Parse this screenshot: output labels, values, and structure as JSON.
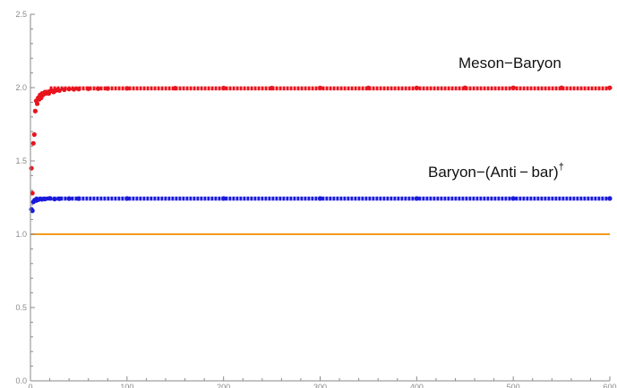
{
  "chart_data": {
    "type": "scatter",
    "title": "",
    "xlabel": "",
    "ylabel": "",
    "xlim": [
      0,
      600
    ],
    "ylim": [
      0,
      2.5
    ],
    "x_ticks": [
      0,
      100,
      200,
      300,
      400,
      500,
      600
    ],
    "x_tick_labels": [
      "0",
      "100",
      "200",
      "300",
      "400",
      "500",
      "600"
    ],
    "y_ticks": [
      0.0,
      0.5,
      1.0,
      1.5,
      2.0,
      2.5
    ],
    "y_tick_labels": [
      "0.0",
      "0.5",
      "1.0",
      "1.5",
      "2.0",
      "2.5"
    ],
    "grid": false,
    "legend": "none",
    "annotations": [
      {
        "text": "Meson−Baryon",
        "sup": "",
        "series": "red"
      },
      {
        "text": "Baryon−(Anti − bar)",
        "sup": "†",
        "series": "blue"
      }
    ],
    "series": [
      {
        "color": "#e8141e",
        "kind": "points",
        "x": [
          1,
          2,
          3,
          4,
          5,
          6,
          7,
          8,
          9,
          10,
          11,
          12,
          13,
          14,
          15,
          16,
          17,
          18,
          19,
          20,
          22,
          24,
          26,
          28,
          30,
          35,
          40,
          45,
          50,
          60,
          70,
          80,
          100,
          150,
          200,
          250,
          300,
          350,
          400,
          450,
          500,
          550,
          600
        ],
        "y": [
          1.45,
          1.28,
          1.62,
          1.68,
          1.84,
          1.91,
          1.89,
          1.93,
          1.92,
          1.95,
          1.93,
          1.96,
          1.95,
          1.96,
          1.97,
          1.96,
          1.97,
          1.97,
          1.96,
          1.975,
          1.98,
          1.97,
          1.98,
          1.985,
          1.98,
          1.985,
          1.99,
          1.988,
          1.99,
          1.992,
          1.993,
          1.994,
          1.995,
          1.996,
          1.997,
          1.997,
          1.998,
          1.998,
          1.998,
          1.999,
          1.999,
          1.999,
          1.999
        ],
        "dense_after": 20,
        "dense_value": 1.995
      },
      {
        "color": "#1a1adc",
        "kind": "points",
        "x": [
          1,
          2,
          3,
          4,
          5,
          6,
          8,
          10,
          12,
          15,
          20,
          25,
          30,
          40,
          50,
          100,
          200,
          300,
          400,
          500,
          600
        ],
        "y": [
          1.17,
          1.16,
          1.22,
          1.23,
          1.235,
          1.23,
          1.235,
          1.24,
          1.238,
          1.24,
          1.245,
          1.24,
          1.242,
          1.243,
          1.243,
          1.244,
          1.244,
          1.244,
          1.244,
          1.244,
          1.244
        ],
        "dense_after": 5,
        "dense_value": 1.243
      },
      {
        "color": "#f39a1d",
        "kind": "line",
        "x": [
          0,
          600
        ],
        "y": [
          1.0,
          1.0
        ]
      }
    ]
  }
}
